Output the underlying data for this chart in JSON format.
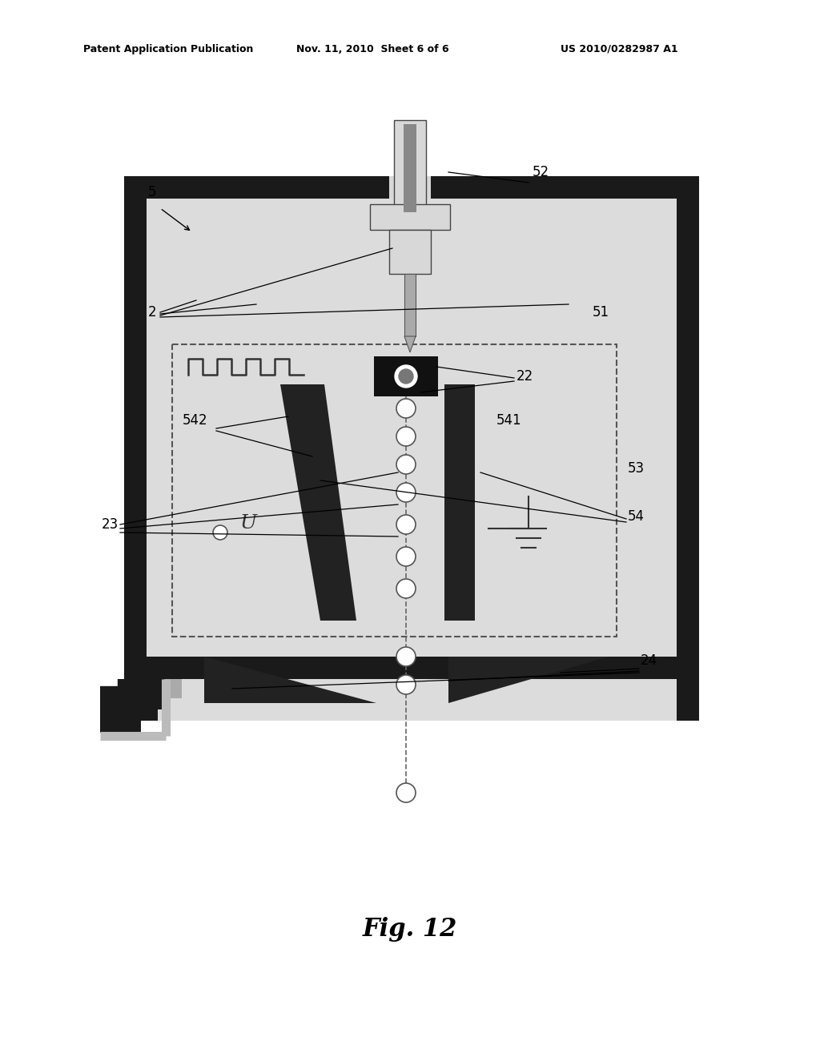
{
  "background_color": "#ffffff",
  "header_left": "Patent Application Publication",
  "header_mid": "Nov. 11, 2010  Sheet 6 of 6",
  "header_right": "US 2010/0282987 A1",
  "fig_label": "Fig. 12",
  "dark": "#1a1a1a",
  "mid_gray": "#888888",
  "light_gray": "#d8d8d8",
  "bg_gray": "#e0e0e0",
  "dashed_color": "#555555"
}
